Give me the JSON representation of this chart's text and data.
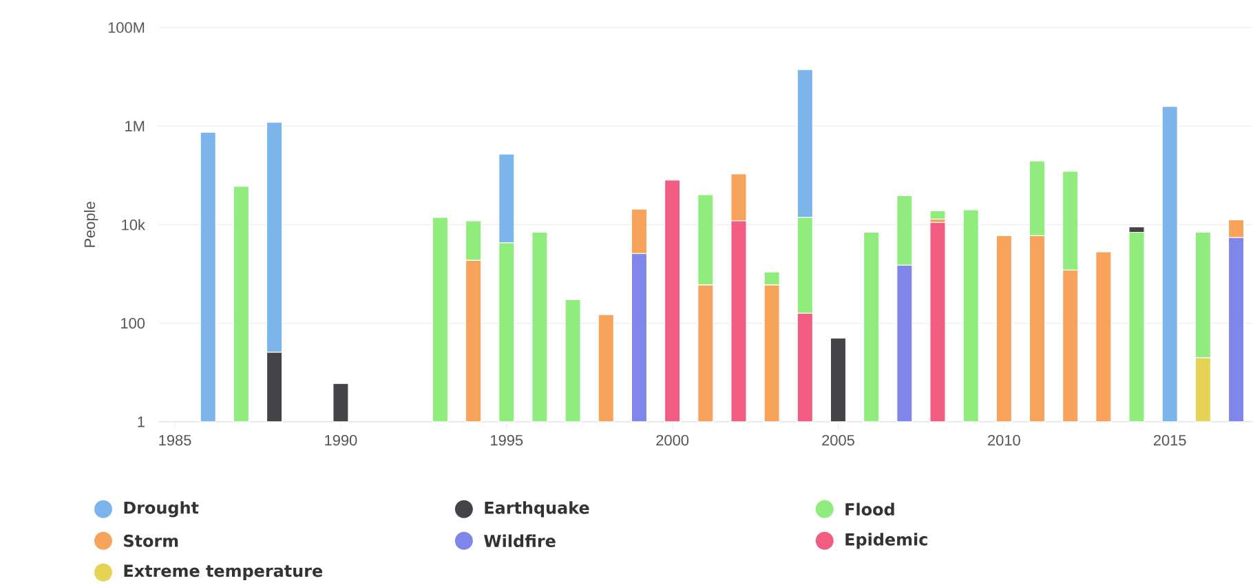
{
  "chart_data": {
    "type": "bar",
    "stacked": true,
    "log": "y",
    "ylabel": "People",
    "x": [
      1986,
      1987,
      1988,
      1989,
      1990,
      1991,
      1992,
      1993,
      1994,
      1995,
      1996,
      1997,
      1998,
      1999,
      2000,
      2001,
      2002,
      2003,
      2004,
      2005,
      2006,
      2007,
      2008,
      2009,
      2010,
      2011,
      2012,
      2013,
      2014,
      2015,
      2016,
      2017
    ],
    "xlim": [
      1984.5,
      2017.5
    ],
    "xticks": [
      1985,
      1990,
      1995,
      2000,
      2005,
      2010,
      2015
    ],
    "ylim": [
      1,
      100000000
    ],
    "yticks": [
      1,
      100,
      {
        "value": 10000,
        "label": "10k"
      },
      {
        "value": 1000000,
        "label": "1M"
      },
      {
        "value": 100000000,
        "label": "100M"
      }
    ],
    "grid": "y",
    "legend": "bottom",
    "series": [
      {
        "name": "Extreme temperature",
        "color": "#e4d354",
        "values": [
          null,
          null,
          null,
          null,
          null,
          null,
          null,
          null,
          null,
          null,
          null,
          null,
          null,
          null,
          null,
          null,
          null,
          null,
          null,
          null,
          null,
          null,
          null,
          null,
          null,
          null,
          null,
          null,
          null,
          null,
          20,
          null
        ]
      },
      {
        "name": "Epidemic",
        "color": "#f15c80",
        "values": [
          null,
          null,
          null,
          null,
          null,
          null,
          null,
          null,
          null,
          null,
          null,
          null,
          null,
          null,
          80000,
          null,
          12000,
          null,
          160,
          null,
          null,
          null,
          11000,
          null,
          null,
          null,
          null,
          null,
          null,
          null,
          null,
          null
        ]
      },
      {
        "name": "Wildfire",
        "color": "#8085e9",
        "values": [
          null,
          null,
          null,
          null,
          null,
          null,
          null,
          null,
          null,
          null,
          null,
          null,
          null,
          2600,
          null,
          null,
          null,
          null,
          null,
          null,
          null,
          1500,
          null,
          null,
          null,
          null,
          null,
          null,
          null,
          null,
          null,
          5500
        ]
      },
      {
        "name": "Storm",
        "color": "#f7a35c",
        "values": [
          null,
          null,
          null,
          null,
          null,
          null,
          null,
          null,
          1900,
          null,
          null,
          null,
          150,
          18000,
          null,
          600,
          95000,
          600,
          null,
          null,
          null,
          null,
          2000,
          null,
          6000,
          6000,
          1200,
          2800,
          null,
          null,
          null,
          7000
        ]
      },
      {
        "name": "Flood",
        "color": "#90ed7d",
        "values": [
          null,
          60000,
          null,
          null,
          null,
          null,
          null,
          14000,
          10000,
          4300,
          7000,
          300,
          null,
          null,
          null,
          40000,
          null,
          500,
          14000,
          null,
          7000,
          37000,
          6000,
          20000,
          null,
          190000,
          120000,
          null,
          7000,
          null,
          7000,
          null
        ]
      },
      {
        "name": "Earthquake",
        "color": "#434348",
        "values": [
          null,
          null,
          26,
          null,
          6,
          null,
          null,
          null,
          null,
          null,
          null,
          null,
          null,
          null,
          null,
          null,
          null,
          null,
          null,
          50,
          null,
          null,
          null,
          null,
          null,
          null,
          null,
          null,
          2000,
          null,
          null,
          null
        ]
      },
      {
        "name": "Drought",
        "color": "#7cb5ec",
        "values": [
          750000,
          null,
          1200000,
          null,
          null,
          null,
          null,
          null,
          null,
          265000,
          null,
          null,
          null,
          null,
          null,
          null,
          null,
          null,
          14000000,
          null,
          null,
          null,
          null,
          null,
          null,
          null,
          null,
          null,
          null,
          2500000,
          null,
          null
        ]
      }
    ]
  }
}
